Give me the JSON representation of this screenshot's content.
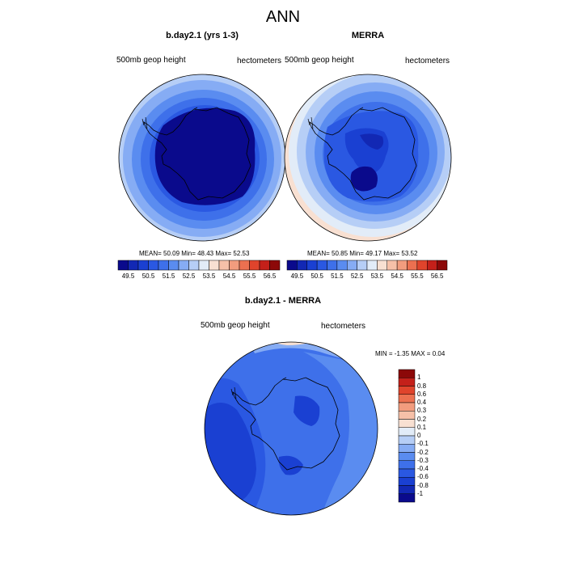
{
  "figure": {
    "title": "ANN"
  },
  "panels": [
    {
      "title": "b.day2.1 (yrs 1-3)",
      "left_label": "500mb geop height",
      "right_label": "hectometers",
      "stats": {
        "mean_label": "MEAN=",
        "mean": "50.09",
        "min_label": "Min=",
        "min": "48.43",
        "max_label": "Max=",
        "max": "52.53"
      }
    },
    {
      "title": "MERRA",
      "left_label": "500mb geop height",
      "right_label": "hectometers",
      "stats": {
        "mean_label": "MEAN=",
        "mean": "50.85",
        "min_label": "Min=",
        "min": "49.17",
        "max_label": "Max=",
        "max": "53.52"
      }
    },
    {
      "title": "b.day2.1 - MERRA",
      "left_label": "500mb geop height",
      "right_label": "hectometers",
      "stats_line": "MIN =  -1.35 MAX =   0.04"
    }
  ],
  "colorbar_h": {
    "colors": [
      "#0a0a8c",
      "#1228b4",
      "#1a40d2",
      "#2a58e2",
      "#3e70ea",
      "#5a8cf0",
      "#86acf4",
      "#b6cef6",
      "#e2ecf8",
      "#f8e0d2",
      "#f6c0a8",
      "#f29c7e",
      "#ec7050",
      "#e0442c",
      "#c4201a",
      "#8c0808"
    ],
    "tick_labels": [
      "49.5",
      "50.5",
      "51.5",
      "52.5",
      "53.5",
      "54.5",
      "55.5",
      "56.5"
    ]
  },
  "colorbar_v": {
    "colors": [
      "#8c0808",
      "#c4201a",
      "#e0442c",
      "#ec7050",
      "#f29c7e",
      "#f6c0a8",
      "#f8e0d2",
      "#e2ecf8",
      "#b6cef6",
      "#86acf4",
      "#5a8cf0",
      "#3e70ea",
      "#2a58e2",
      "#1a40d2",
      "#1228b4",
      "#0a0a8c"
    ],
    "tick_labels": [
      "1",
      "0.8",
      "0.6",
      "0.4",
      "0.3",
      "0.2",
      "0.1",
      "0",
      "-0.1",
      "-0.2",
      "-0.3",
      "-0.4",
      "-0.6",
      "-0.8",
      "-1"
    ]
  },
  "colors": {
    "ring_levels": [
      "#b6cef6",
      "#86acf4",
      "#5a8cf0",
      "#3e70ea",
      "#2a58e2",
      "#1a40d2",
      "#1228b4"
    ],
    "diff_base": "#2a58e2",
    "diff_dark": "#1a40d2",
    "diff_light": "#86acf4",
    "diff_warm": "#f8e0d2",
    "coast": "#000000"
  }
}
